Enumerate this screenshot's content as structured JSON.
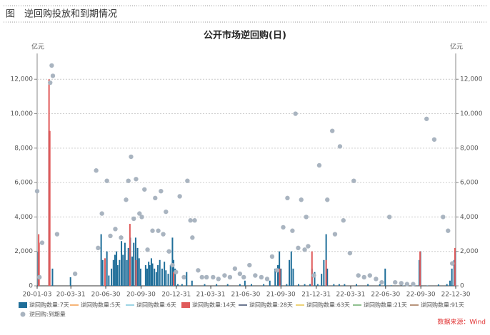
{
  "header": {
    "title": "图　逆回购投放和到期情况"
  },
  "source": "数据来源：Wind",
  "chart_data": {
    "type": "combo",
    "title": "公开市场逆回购(日)",
    "y_unit": "亿元",
    "y2_unit": "亿元",
    "xlim": [
      "20-01-03",
      "22-12-30"
    ],
    "xticks": [
      "20-01-03",
      "20-03-31",
      "20-06-30",
      "20-09-30",
      "20-12-31",
      "21-03-31",
      "21-06-30",
      "21-09-30",
      "21-12-31",
      "22-03-31",
      "22-06-30",
      "22-09-30",
      "22-12-30"
    ],
    "ylim": [
      0,
      13500
    ],
    "yticks": [
      0,
      {
        "value": 2000,
        "label": "2,000"
      },
      {
        "value": 4000,
        "label": "4,000"
      },
      {
        "value": 6000,
        "label": "6,000"
      },
      {
        "value": 8000,
        "label": "8,000"
      },
      {
        "value": 10000,
        "label": "10,000"
      },
      {
        "value": 12000,
        "label": "12,000"
      }
    ],
    "y2lim": [
      0,
      13500
    ],
    "y2ticks": [
      0,
      {
        "value": 2000,
        "label": "2,000"
      },
      {
        "value": 4000,
        "label": "4,000"
      },
      {
        "value": 6000,
        "label": "6,000"
      },
      {
        "value": 8000,
        "label": "8,000"
      },
      {
        "value": 10000,
        "label": "10,000"
      },
      {
        "value": 12000,
        "label": "12,000"
      }
    ],
    "grid": true,
    "legend": "bottom",
    "series": [
      {
        "name": "逆回购数量:7天",
        "type": "bar",
        "color": "#1f6e99",
        "x": [
          "20-01-06",
          "20-02-03",
          "20-02-04",
          "20-02-12",
          "20-03-30",
          "20-06-18",
          "20-06-22",
          "20-06-28",
          "20-07-03",
          "20-07-08",
          "20-07-15",
          "20-07-20",
          "20-07-24",
          "20-07-28",
          "20-07-31",
          "20-08-05",
          "20-08-10",
          "20-08-14",
          "20-08-19",
          "20-08-24",
          "20-08-28",
          "20-09-02",
          "20-09-07",
          "20-09-11",
          "20-09-16",
          "20-09-21",
          "20-09-25",
          "20-09-29",
          "20-10-12",
          "20-10-16",
          "20-10-20",
          "20-10-23",
          "20-10-27",
          "20-10-30",
          "20-11-04",
          "20-11-09",
          "20-11-13",
          "20-11-18",
          "20-11-24",
          "20-11-30",
          "20-12-04",
          "20-12-10",
          "20-12-16",
          "20-12-21",
          "20-12-24",
          "20-12-28",
          "21-01-04",
          "21-01-15",
          "21-01-27",
          "21-02-10",
          "21-03-15",
          "21-04-15",
          "21-05-14",
          "21-06-15",
          "21-06-28",
          "21-07-15",
          "21-08-16",
          "21-09-01",
          "21-09-15",
          "21-09-22",
          "21-09-26",
          "21-09-30",
          "21-10-15",
          "21-10-22",
          "21-10-27",
          "21-11-01",
          "21-11-15",
          "21-12-01",
          "21-12-15",
          "21-12-20",
          "21-12-27",
          "22-01-04",
          "22-01-14",
          "22-01-20",
          "22-01-26",
          "22-01-29",
          "22-02-15",
          "22-03-01",
          "22-03-15",
          "22-04-15",
          "22-05-15",
          "22-06-15",
          "22-06-29",
          "22-07-15",
          "22-08-15",
          "22-09-15",
          "22-09-26",
          "22-09-29",
          "22-10-17",
          "22-11-15",
          "22-12-07",
          "22-12-15",
          "22-12-20",
          "22-12-26",
          "22-12-29"
        ],
        "values": [
          2000,
          9000,
          6000,
          1000,
          500,
          3000,
          1500,
          1200,
          2000,
          600,
          1000,
          1500,
          1800,
          2000,
          1200,
          1500,
          2600,
          1800,
          2500,
          1500,
          2200,
          2800,
          1700,
          2500,
          2800,
          2200,
          1600,
          1000,
          1200,
          1000,
          1400,
          1200,
          1600,
          1300,
          1000,
          800,
          1200,
          1500,
          1000,
          1400,
          900,
          700,
          1200,
          2800,
          1500,
          1000,
          100,
          100,
          800,
          300,
          100,
          100,
          100,
          100,
          300,
          100,
          100,
          300,
          1000,
          1200,
          2000,
          1000,
          100,
          1500,
          2000,
          1000,
          100,
          100,
          100,
          1000,
          800,
          100,
          700,
          1500,
          3000,
          1000,
          100,
          100,
          100,
          100,
          100,
          100,
          1000,
          30,
          20,
          20,
          1500,
          2000,
          20,
          80,
          100,
          300,
          1000,
          1500,
          2000
        ]
      },
      {
        "name": "逆回购数量:5天",
        "type": "line",
        "color": "#f39a4a",
        "x": [],
        "values": []
      },
      {
        "name": "逆回购数量:6天",
        "type": "line",
        "color": "#7cc7dc",
        "x": [],
        "values": []
      },
      {
        "name": "逆回购数量:14天",
        "type": "bar",
        "color": "#e05a5a",
        "x": [
          "20-01-07",
          "20-01-08",
          "20-02-03",
          "20-02-05",
          "20-06-28",
          "20-09-01",
          "20-09-17",
          "20-12-24",
          "21-09-27",
          "21-12-20",
          "22-01-26",
          "22-09-28",
          "22-12-28"
        ],
        "values": [
          3000,
          2500,
          12000,
          9000,
          1600,
          3600,
          1500,
          800,
          1000,
          2000,
          1500,
          2000,
          2200
        ]
      },
      {
        "name": "逆回购数量:28天",
        "type": "line",
        "color": "#3b4a6b",
        "x": [],
        "values": []
      },
      {
        "name": "逆回购数量:63天",
        "type": "line",
        "color": "#e8c44a",
        "x": [],
        "values": []
      },
      {
        "name": "逆回购数量:21天",
        "type": "line",
        "color": "#6aaa6a",
        "x": [],
        "values": []
      },
      {
        "name": "逆回购数量:91天",
        "type": "line",
        "color": "#a07050",
        "x": [],
        "values": []
      },
      {
        "name": "逆回购:到期量",
        "type": "scatter",
        "color": "#a9b4c0",
        "x": [
          "20-01-03",
          "20-01-09",
          "20-01-16",
          "20-02-06",
          "20-02-10",
          "20-02-13",
          "20-02-24",
          "20-04-11",
          "20-06-05",
          "20-06-10",
          "20-06-20",
          "20-07-03",
          "20-07-12",
          "20-07-25",
          "20-08-09",
          "20-08-22",
          "20-08-28",
          "20-09-04",
          "20-09-11",
          "20-09-17",
          "20-09-26",
          "20-10-02",
          "20-10-09",
          "20-10-17",
          "20-10-30",
          "20-11-06",
          "20-11-14",
          "20-11-21",
          "20-11-27",
          "20-12-04",
          "20-12-12",
          "20-12-21",
          "20-12-30",
          "21-01-09",
          "21-01-20",
          "21-01-29",
          "21-02-06",
          "21-02-11",
          "21-02-17",
          "21-02-26",
          "21-03-08",
          "21-03-20",
          "21-04-06",
          "21-04-20",
          "21-05-06",
          "21-05-20",
          "21-06-02",
          "21-06-15",
          "21-06-25",
          "21-07-10",
          "21-07-25",
          "21-08-10",
          "21-08-25",
          "21-09-07",
          "21-09-20",
          "21-10-06",
          "21-10-17",
          "21-10-30",
          "21-11-07",
          "21-11-14",
          "21-11-22",
          "21-12-01",
          "21-12-05",
          "21-12-10",
          "21-12-25",
          "22-01-08",
          "22-01-29",
          "22-02-11",
          "22-02-18",
          "22-03-03",
          "22-03-12",
          "22-03-29",
          "22-04-08",
          "22-04-20",
          "22-05-05",
          "22-05-20",
          "22-06-05",
          "22-06-20",
          "22-07-10",
          "22-07-25",
          "22-08-10",
          "22-08-25",
          "22-09-10",
          "22-10-15",
          "22-11-04",
          "22-11-27",
          "22-12-10",
          "22-12-21"
        ],
        "values": [
          5500,
          500,
          2500,
          11800,
          12800,
          12200,
          3000,
          700,
          6700,
          2200,
          4200,
          6100,
          2900,
          3300,
          2800,
          5000,
          6100,
          7500,
          3900,
          6200,
          4200,
          4000,
          5600,
          2100,
          3200,
          5100,
          3200,
          5500,
          3000,
          4300,
          2000,
          1200,
          800,
          5200,
          500,
          6100,
          3800,
          2800,
          3800,
          900,
          500,
          500,
          500,
          400,
          600,
          500,
          1000,
          700,
          500,
          1200,
          600,
          500,
          400,
          1700,
          900,
          3400,
          5100,
          3200,
          10000,
          2200,
          5000,
          2100,
          4000,
          2300,
          600,
          7000,
          5000,
          9000,
          3000,
          8100,
          3800,
          1900,
          6100,
          600,
          500,
          600,
          400,
          200,
          4000,
          200,
          150,
          100,
          100,
          9700,
          8500,
          4000,
          3200,
          1300
        ]
      }
    ]
  }
}
